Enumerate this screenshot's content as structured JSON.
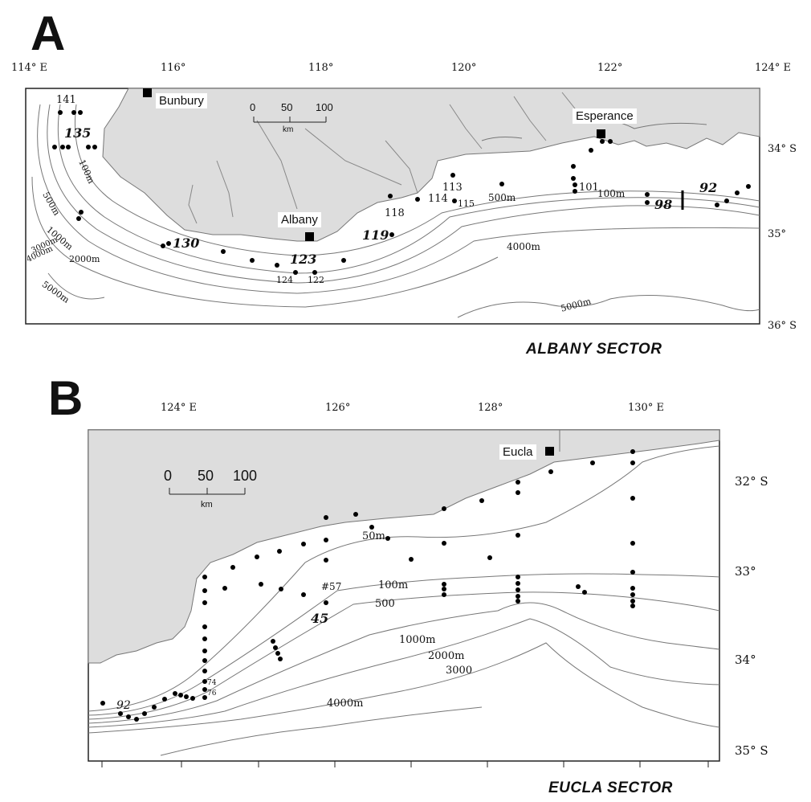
{
  "panel_a": {
    "letter": "A",
    "sector_title": "ALBANY SECTOR",
    "longitudes": [
      "114° E",
      "116°",
      "118°",
      "120°",
      "122°",
      "124° E"
    ],
    "latitudes": [
      "34° S",
      "35°",
      "36° S"
    ],
    "towns": [
      "Bunbury",
      "Albany",
      "Esperance"
    ],
    "scale": {
      "ticks": [
        "0",
        "50",
        "100"
      ],
      "unit": "km"
    },
    "depth_labels": [
      "100m",
      "500m",
      "1000m",
      "3000m",
      "4000m",
      "2000m",
      "5000m",
      "100m",
      "500m",
      "4000m",
      "5000m"
    ],
    "stations": [
      "141",
      "135",
      "130",
      "123",
      "124",
      "122",
      "118",
      "119",
      "113",
      "114",
      "115",
      "101",
      "98",
      "92",
      "I"
    ]
  },
  "panel_b": {
    "letter": "B",
    "sector_title": "EUCLA SECTOR",
    "longitudes": [
      "124° E",
      "126°",
      "128°",
      "130° E"
    ],
    "latitudes": [
      "32° S",
      "33°",
      "34°",
      "35° S"
    ],
    "towns": [
      "Eucla"
    ],
    "scale": {
      "ticks": [
        "0",
        "50",
        "100"
      ],
      "unit": "km"
    },
    "depth_labels": [
      "50m",
      "100m",
      "500",
      "1000m",
      "2000m",
      "3000",
      "4000m"
    ],
    "stations": [
      "#57",
      "45",
      "92",
      "74",
      "76"
    ]
  },
  "colors": {
    "land": "#dddddd",
    "contour": "#777777",
    "frame": "#222222",
    "station": "#000000"
  }
}
